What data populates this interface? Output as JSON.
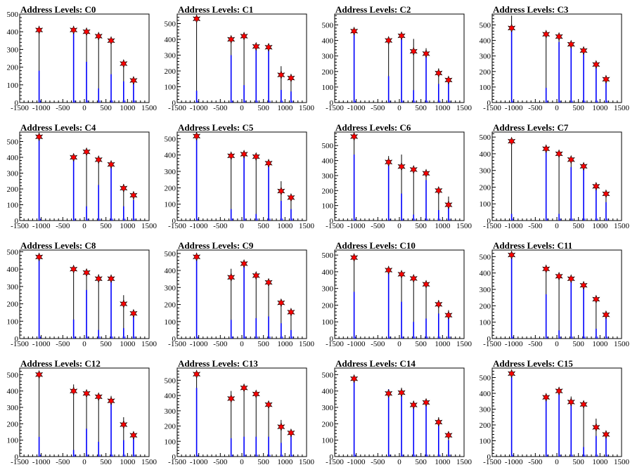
{
  "chart_data": [
    {
      "type": "bar",
      "title": "Address Levels: C0",
      "xlim": [
        -1500,
        1500
      ],
      "ylim": [
        0,
        500
      ],
      "yticks": [
        0,
        100,
        200,
        300,
        400,
        500
      ],
      "xticks": [
        -1500,
        -1000,
        -500,
        0,
        500,
        1000,
        1500
      ],
      "peak_x": [
        -1050,
        -250,
        50,
        330,
        620,
        910,
        1140
      ],
      "peaks": [
        410,
        410,
        400,
        375,
        350,
        220,
        125
      ],
      "markers": [
        410,
        410,
        400,
        375,
        350,
        220,
        125
      ],
      "blue": [
        180,
        410,
        230,
        80,
        160,
        120,
        125
      ]
    },
    {
      "type": "bar",
      "title": "Address Levels: C1",
      "xlim": [
        -1500,
        1500
      ],
      "ylim": [
        0,
        560
      ],
      "yticks": [
        0,
        100,
        200,
        300,
        400,
        500
      ],
      "xticks": [
        -1500,
        -1000,
        -500,
        0,
        500,
        1000,
        1500
      ],
      "peak_x": [
        -1050,
        -250,
        50,
        330,
        620,
        910,
        1140
      ],
      "peaks": [
        540,
        410,
        430,
        370,
        360,
        230,
        180
      ],
      "markers": [
        530,
        400,
        420,
        355,
        350,
        175,
        155
      ],
      "blue": [
        75,
        300,
        110,
        360,
        330,
        80,
        70
      ]
    },
    {
      "type": "bar",
      "title": "Address Levels: C2",
      "xlim": [
        -1500,
        1500
      ],
      "ylim": [
        0,
        570
      ],
      "yticks": [
        0,
        100,
        200,
        300,
        400,
        500
      ],
      "xticks": [
        -1500,
        -1000,
        -500,
        0,
        500,
        1000,
        1500
      ],
      "peak_x": [
        -1050,
        -250,
        50,
        330,
        620,
        910,
        1140
      ],
      "peaks": [
        470,
        400,
        430,
        410,
        350,
        220,
        150
      ],
      "markers": [
        460,
        400,
        430,
        330,
        315,
        190,
        145
      ],
      "blue": [
        470,
        170,
        430,
        80,
        330,
        120,
        130
      ]
    },
    {
      "type": "bar",
      "title": "Address Levels: C3",
      "xlim": [
        -1500,
        1500
      ],
      "ylim": [
        0,
        570
      ],
      "yticks": [
        0,
        100,
        200,
        300,
        400,
        500
      ],
      "xticks": [
        -1500,
        -1000,
        -500,
        0,
        500,
        1000,
        1500
      ],
      "peak_x": [
        -1050,
        -250,
        50,
        330,
        620,
        910,
        1140
      ],
      "peaks": [
        560,
        450,
        440,
        390,
        350,
        260,
        170
      ],
      "markers": [
        480,
        440,
        425,
        375,
        335,
        245,
        150
      ],
      "blue": [
        480,
        95,
        390,
        370,
        330,
        230,
        130
      ]
    },
    {
      "type": "bar",
      "title": "Address Levels: C4",
      "xlim": [
        -1500,
        1500
      ],
      "ylim": [
        0,
        560
      ],
      "yticks": [
        0,
        100,
        200,
        300,
        400,
        500
      ],
      "xticks": [
        -1500,
        -1000,
        -500,
        0,
        500,
        1000,
        1500
      ],
      "peak_x": [
        -1050,
        -250,
        50,
        330,
        620,
        910,
        1140
      ],
      "peaks": [
        540,
        410,
        450,
        400,
        360,
        230,
        170
      ],
      "markers": [
        530,
        400,
        435,
        385,
        355,
        205,
        160
      ],
      "blue": [
        530,
        400,
        90,
        225,
        360,
        90,
        130
      ]
    },
    {
      "type": "bar",
      "title": "Address Levels: C5",
      "xlim": [
        -1500,
        1500
      ],
      "ylim": [
        0,
        540
      ],
      "yticks": [
        0,
        100,
        200,
        300,
        400,
        500
      ],
      "xticks": [
        -1500,
        -1000,
        -500,
        0,
        500,
        1000,
        1500
      ],
      "peak_x": [
        -1050,
        -250,
        50,
        330,
        620,
        910,
        1140
      ],
      "peaks": [
        520,
        400,
        410,
        400,
        360,
        240,
        150
      ],
      "markers": [
        515,
        395,
        405,
        390,
        350,
        180,
        140
      ],
      "blue": [
        515,
        70,
        390,
        40,
        340,
        120,
        70
      ]
    },
    {
      "type": "bar",
      "title": "Address Levels: C6",
      "xlim": [
        -1500,
        1500
      ],
      "ylim": [
        0,
        590
      ],
      "yticks": [
        0,
        100,
        200,
        300,
        400,
        500
      ],
      "xticks": [
        -1500,
        -1000,
        -500,
        0,
        500,
        1000,
        1500
      ],
      "peak_x": [
        -1050,
        -250,
        50,
        330,
        620,
        910,
        1140
      ],
      "peaks": [
        570,
        430,
        440,
        350,
        330,
        220,
        160
      ],
      "markers": [
        560,
        390,
        360,
        340,
        315,
        200,
        105
      ],
      "blue": [
        440,
        400,
        180,
        40,
        270,
        70,
        110
      ]
    },
    {
      "type": "bar",
      "title": "Address Levels: C7",
      "xlim": [
        -1500,
        1500
      ],
      "ylim": [
        0,
        530
      ],
      "yticks": [
        0,
        100,
        200,
        300,
        400,
        500
      ],
      "xticks": [
        -1500,
        -1000,
        -500,
        0,
        500,
        1000,
        1500
      ],
      "peak_x": [
        -1050,
        -250,
        50,
        330,
        620,
        910,
        1140
      ],
      "peaks": [
        490,
        440,
        410,
        370,
        340,
        220,
        170
      ],
      "markers": [
        475,
        430,
        400,
        365,
        325,
        205,
        160
      ],
      "blue": [
        40,
        420,
        40,
        320,
        320,
        200,
        110
      ]
    },
    {
      "type": "bar",
      "title": "Address Levels: C8",
      "xlim": [
        -1500,
        1500
      ],
      "ylim": [
        0,
        510
      ],
      "yticks": [
        0,
        100,
        200,
        300,
        400,
        500
      ],
      "xticks": [
        -1500,
        -1000,
        -500,
        0,
        500,
        1000,
        1500
      ],
      "peak_x": [
        -1050,
        -250,
        50,
        330,
        620,
        910,
        1140
      ],
      "peaks": [
        480,
        410,
        400,
        370,
        350,
        250,
        150
      ],
      "markers": [
        470,
        400,
        380,
        345,
        345,
        200,
        145
      ],
      "blue": [
        470,
        110,
        280,
        50,
        340,
        60,
        145
      ]
    },
    {
      "type": "bar",
      "title": "Address Levels: C9",
      "xlim": [
        -1500,
        1500
      ],
      "ylim": [
        0,
        520
      ],
      "yticks": [
        0,
        100,
        200,
        300,
        400,
        500
      ],
      "xticks": [
        -1500,
        -1000,
        -500,
        0,
        500,
        1000,
        1500
      ],
      "peak_x": [
        -1050,
        -250,
        50,
        330,
        620,
        910,
        1140
      ],
      "peaks": [
        490,
        410,
        450,
        380,
        340,
        220,
        160
      ],
      "markers": [
        480,
        360,
        440,
        370,
        330,
        210,
        155
      ],
      "blue": [
        480,
        110,
        430,
        120,
        130,
        90,
        50
      ]
    },
    {
      "type": "bar",
      "title": "Address Levels: C10",
      "xlim": [
        -1500,
        1500
      ],
      "ylim": [
        0,
        530
      ],
      "yticks": [
        0,
        100,
        200,
        300,
        400,
        500
      ],
      "xticks": [
        -1500,
        -1000,
        -500,
        0,
        500,
        1000,
        1500
      ],
      "peak_x": [
        -1050,
        -250,
        50,
        330,
        620,
        910,
        1140
      ],
      "peaks": [
        500,
        430,
        400,
        370,
        340,
        230,
        170
      ],
      "markers": [
        485,
        410,
        385,
        360,
        325,
        205,
        140
      ],
      "blue": [
        280,
        410,
        220,
        100,
        120,
        150,
        130
      ]
    },
    {
      "type": "bar",
      "title": "Address Levels: C11",
      "xlim": [
        -1500,
        1500
      ],
      "ylim": [
        0,
        540
      ],
      "yticks": [
        0,
        100,
        200,
        300,
        400,
        500
      ],
      "xticks": [
        -1500,
        -1000,
        -500,
        0,
        500,
        1000,
        1500
      ],
      "peak_x": [
        -1050,
        -250,
        50,
        330,
        620,
        910,
        1140
      ],
      "peaks": [
        520,
        440,
        390,
        380,
        340,
        250,
        160
      ],
      "markers": [
        510,
        425,
        380,
        365,
        325,
        240,
        145
      ],
      "blue": [
        510,
        270,
        50,
        360,
        310,
        60,
        140
      ]
    },
    {
      "type": "bar",
      "title": "Address Levels: C12",
      "xlim": [
        -1500,
        1500
      ],
      "ylim": [
        0,
        540
      ],
      "yticks": [
        0,
        100,
        200,
        300,
        400,
        500
      ],
      "xticks": [
        -1500,
        -1000,
        -500,
        0,
        500,
        1000,
        1500
      ],
      "peak_x": [
        -1050,
        -250,
        50,
        330,
        620,
        910,
        1140
      ],
      "peaks": [
        510,
        440,
        400,
        380,
        370,
        240,
        150
      ],
      "markers": [
        500,
        400,
        385,
        365,
        340,
        195,
        130
      ],
      "blue": [
        120,
        40,
        170,
        90,
        330,
        100,
        130
      ]
    },
    {
      "type": "bar",
      "title": "Address Levels: C13",
      "xlim": [
        -1500,
        1500
      ],
      "ylim": [
        0,
        580
      ],
      "yticks": [
        0,
        100,
        200,
        300,
        400,
        500
      ],
      "xticks": [
        -1500,
        -1000,
        -500,
        0,
        500,
        1000,
        1500
      ],
      "peak_x": [
        -1050,
        -250,
        50,
        330,
        620,
        910,
        1140
      ],
      "peaks": [
        560,
        430,
        460,
        420,
        350,
        240,
        170
      ],
      "markers": [
        540,
        380,
        450,
        410,
        340,
        195,
        155
      ],
      "blue": [
        450,
        120,
        130,
        130,
        130,
        90,
        150
      ]
    },
    {
      "type": "bar",
      "title": "Address Levels: C14",
      "xlim": [
        -1500,
        1500
      ],
      "ylim": [
        0,
        540
      ],
      "yticks": [
        0,
        100,
        200,
        300,
        400,
        500
      ],
      "xticks": [
        -1500,
        -1000,
        -500,
        0,
        500,
        1000,
        1500
      ],
      "peak_x": [
        -1050,
        -250,
        50,
        330,
        620,
        910,
        1140
      ],
      "peaks": [
        490,
        410,
        420,
        340,
        340,
        240,
        150
      ],
      "markers": [
        475,
        385,
        390,
        315,
        330,
        210,
        130
      ],
      "blue": [
        475,
        410,
        390,
        300,
        320,
        210,
        100
      ]
    },
    {
      "type": "bar",
      "title": "Address Levels: C15",
      "xlim": [
        -1500,
        1500
      ],
      "ylim": [
        0,
        560
      ],
      "yticks": [
        0,
        100,
        200,
        300,
        400,
        500
      ],
      "xticks": [
        -1500,
        -1000,
        -500,
        0,
        500,
        1000,
        1500
      ],
      "peak_x": [
        -1050,
        -250,
        50,
        330,
        620,
        910,
        1140
      ],
      "peaks": [
        540,
        390,
        420,
        380,
        340,
        240,
        150
      ],
      "markers": [
        525,
        375,
        415,
        345,
        330,
        185,
        140
      ],
      "blue": [
        525,
        375,
        415,
        360,
        60,
        130,
        120
      ]
    }
  ],
  "colors": {
    "bar_line": "#000000",
    "bar_fill": "#0000ff",
    "marker": "#ff0000",
    "marker_edge": "#000000"
  }
}
